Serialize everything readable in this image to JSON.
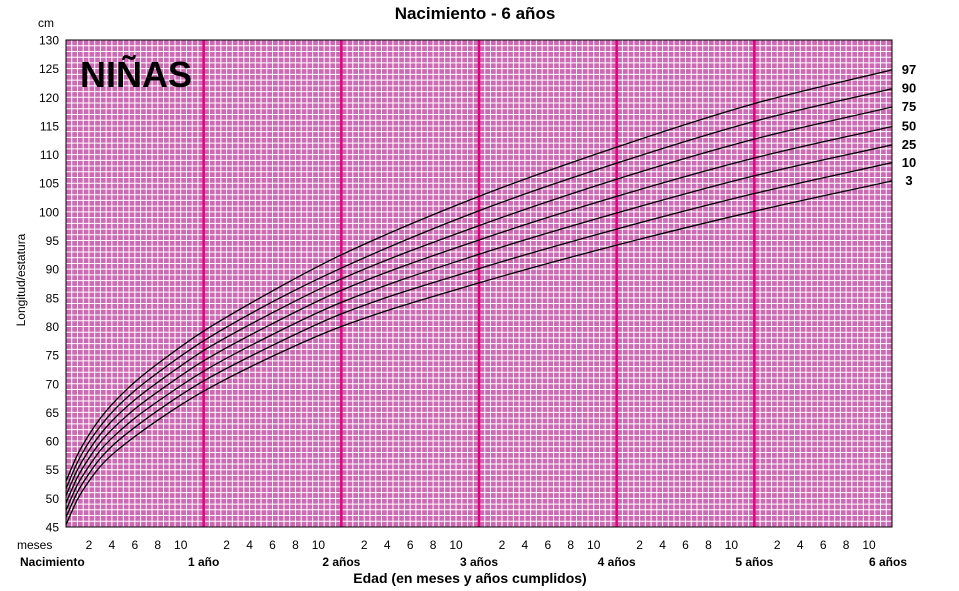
{
  "chart_data": {
    "type": "line",
    "title": "Nacimiento - 6 años",
    "badge": "NIÑAS",
    "y_unit": "cm",
    "ylabel": "Longitud/estatura",
    "xlabel": "Edad (en meses y años cumplidos)",
    "x_row_label": "meses",
    "ylim": [
      45,
      130
    ],
    "y_ticks": [
      45,
      50,
      55,
      60,
      65,
      70,
      75,
      80,
      85,
      90,
      95,
      100,
      105,
      110,
      115,
      120,
      125,
      130
    ],
    "xlim": [
      0,
      72
    ],
    "month_tick_labels": [
      "2",
      "4",
      "6",
      "8",
      "10"
    ],
    "year_labels": [
      "Nacimiento",
      "1 año",
      "2 años",
      "3 años",
      "4 años",
      "5 años",
      "6 años"
    ],
    "grid": true,
    "legend": "right, at line ends",
    "colors": {
      "background": "#ffffff",
      "plot_bg": "#cc6bb4",
      "grid": "#ffffff",
      "year_line": "#e6007e",
      "curve": "#000000"
    },
    "series": [
      {
        "name": "97",
        "x": [
          0,
          1,
          2,
          3,
          4,
          6,
          9,
          12,
          18,
          24,
          36,
          48,
          60,
          72
        ],
        "y": [
          53.0,
          57.6,
          61.1,
          64.0,
          66.4,
          70.3,
          75.0,
          79.2,
          86.2,
          92.5,
          102.7,
          111.3,
          118.9,
          124.8
        ]
      },
      {
        "name": "90",
        "x": [
          0,
          1,
          2,
          3,
          4,
          6,
          9,
          12,
          18,
          24,
          36,
          48,
          60,
          72
        ],
        "y": [
          51.7,
          56.3,
          59.8,
          62.6,
          65.0,
          68.8,
          73.4,
          77.5,
          84.3,
          90.2,
          100.2,
          108.5,
          115.8,
          121.5
        ]
      },
      {
        "name": "75",
        "x": [
          0,
          1,
          2,
          3,
          4,
          6,
          9,
          12,
          18,
          24,
          36,
          48,
          60,
          72
        ],
        "y": [
          50.5,
          55.0,
          58.4,
          61.2,
          63.5,
          67.2,
          71.7,
          75.8,
          82.4,
          88.3,
          97.6,
          105.7,
          112.7,
          118.3
        ]
      },
      {
        "name": "50",
        "x": [
          0,
          1,
          2,
          3,
          4,
          6,
          9,
          12,
          18,
          24,
          36,
          48,
          60,
          72
        ],
        "y": [
          49.2,
          53.7,
          57.0,
          59.8,
          62.0,
          65.6,
          70.0,
          74.0,
          80.5,
          86.3,
          95.1,
          102.7,
          109.4,
          114.9
        ]
      },
      {
        "name": "25",
        "x": [
          0,
          1,
          2,
          3,
          4,
          6,
          9,
          12,
          18,
          24,
          36,
          48,
          60,
          72
        ],
        "y": [
          47.9,
          52.4,
          55.6,
          58.4,
          60.5,
          64.0,
          68.3,
          72.2,
          78.6,
          84.2,
          92.6,
          99.8,
          106.3,
          111.7
        ]
      },
      {
        "name": "10",
        "x": [
          0,
          1,
          2,
          3,
          4,
          6,
          9,
          12,
          18,
          24,
          36,
          48,
          60,
          72
        ],
        "y": [
          46.7,
          51.1,
          54.3,
          57.0,
          59.1,
          62.4,
          66.7,
          70.5,
          76.7,
          82.2,
          90.1,
          97.0,
          103.2,
          108.6
        ]
      },
      {
        "name": "3",
        "x": [
          0,
          1,
          2,
          3,
          4,
          6,
          9,
          12,
          18,
          24,
          36,
          48,
          60,
          72
        ],
        "y": [
          45.4,
          49.8,
          53.0,
          55.6,
          57.6,
          60.8,
          65.0,
          68.7,
          74.8,
          80.0,
          87.6,
          94.2,
          100.1,
          105.4
        ]
      }
    ]
  }
}
